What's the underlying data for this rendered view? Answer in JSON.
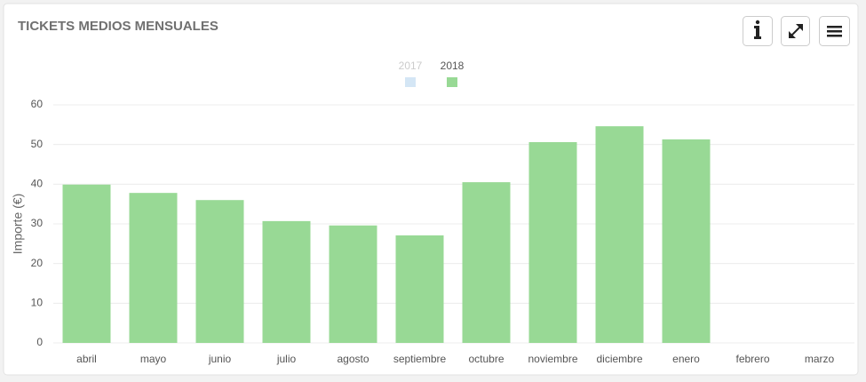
{
  "chart_data": {
    "type": "bar",
    "title": "TICKETS MEDIOS MENSUALES",
    "y_label": "Importe (€)",
    "categories": [
      "abril",
      "mayo",
      "junio",
      "julio",
      "agosto",
      "septiembre",
      "octubre",
      "noviembre",
      "diciembre",
      "enero",
      "febrero",
      "marzo"
    ],
    "series": [
      {
        "name": "2017",
        "color": "#d4e6f5",
        "visible": false,
        "values": [
          null,
          null,
          null,
          null,
          null,
          null,
          null,
          null,
          null,
          null,
          null,
          null
        ]
      },
      {
        "name": "2018",
        "color": "#98d995",
        "visible": true,
        "values": [
          39.9,
          37.8,
          36.0,
          30.7,
          29.6,
          27.1,
          40.5,
          50.6,
          54.6,
          51.3,
          null,
          null
        ]
      }
    ],
    "ylim": [
      0,
      60
    ],
    "yticks": [
      0,
      10,
      20,
      30,
      40,
      50,
      60
    ],
    "grid": true,
    "legend": "top"
  }
}
